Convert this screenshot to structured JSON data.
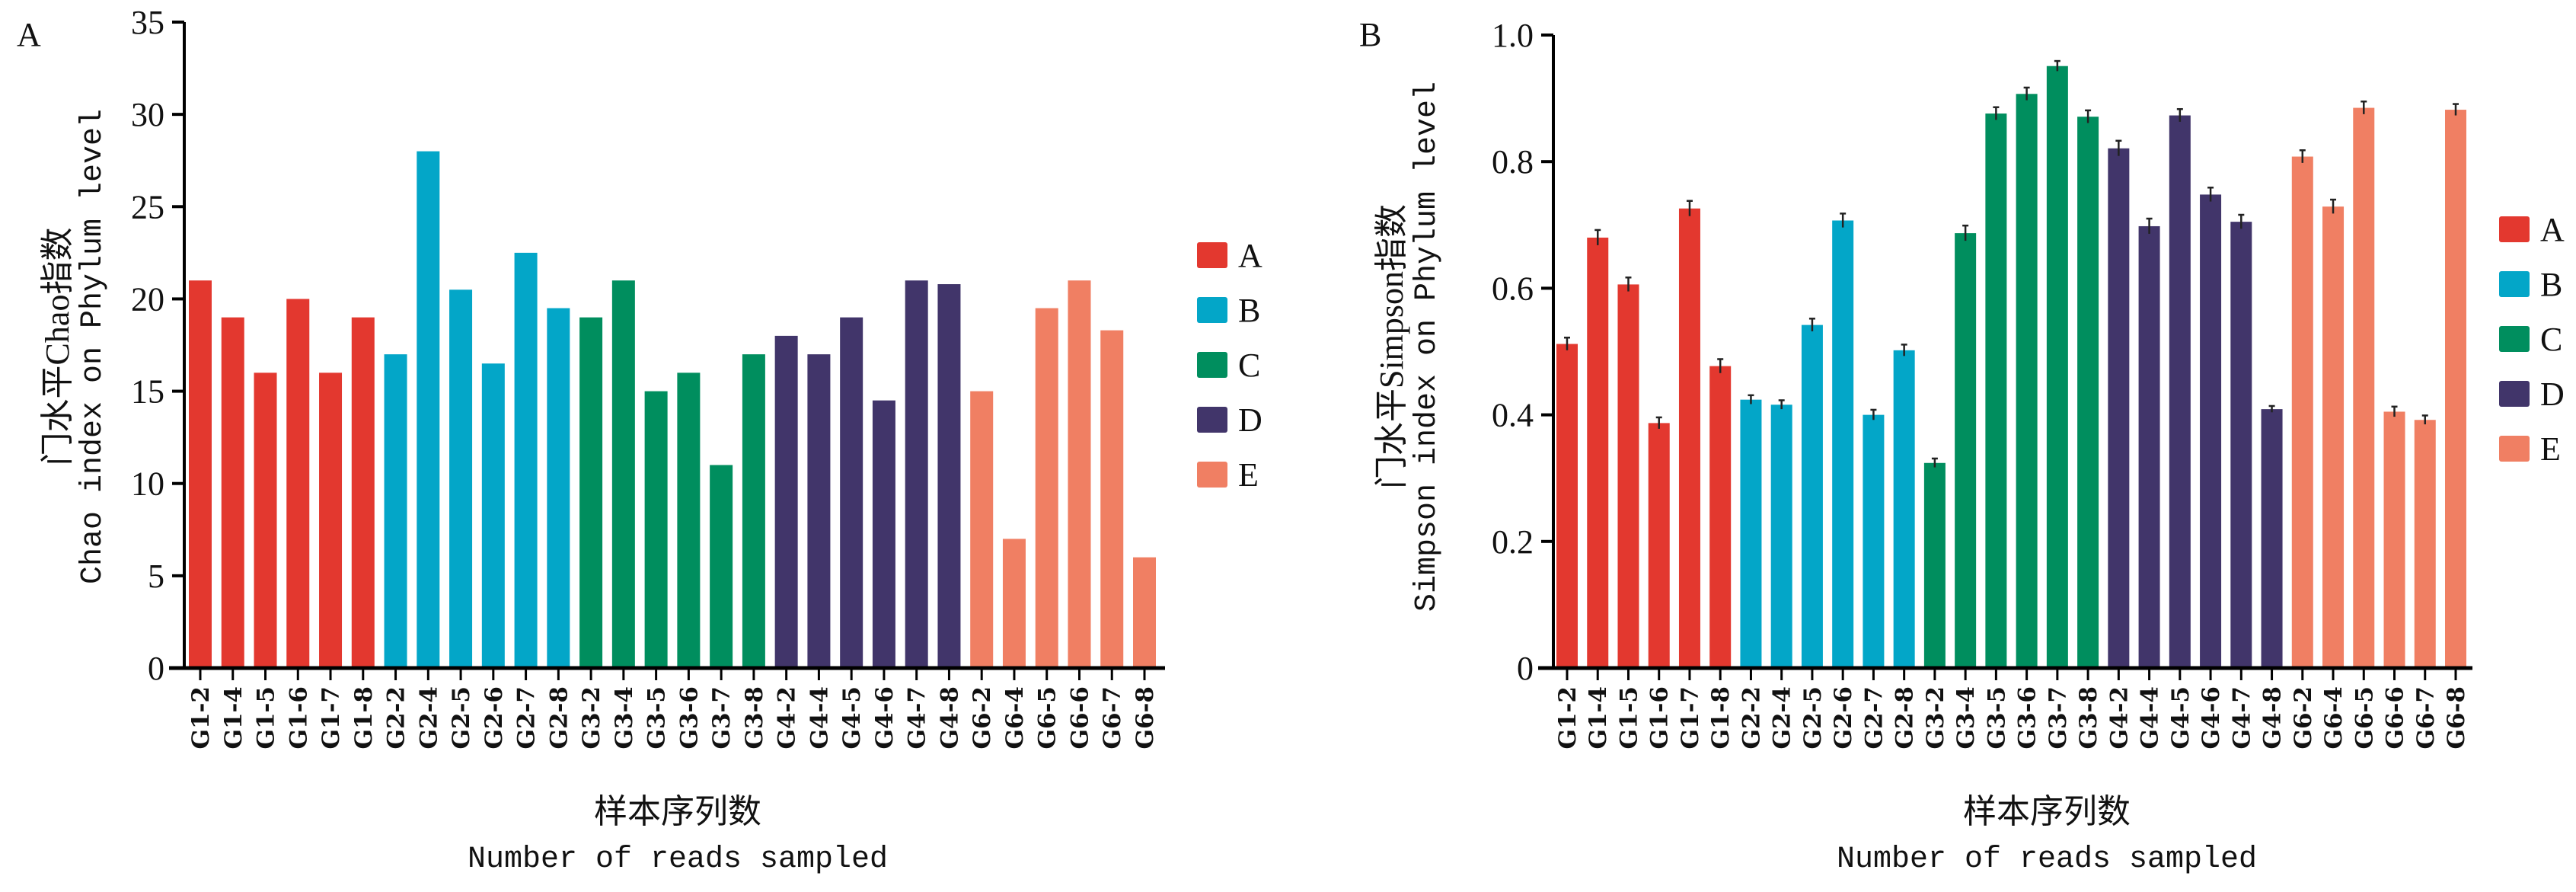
{
  "chart_data": [
    {
      "type": "bar",
      "panel_label": "A",
      "title": "",
      "ylabel_cn": "门水平Chao指数",
      "ylabel_en": "Chao index on Phylum level",
      "xlabel_cn": "样本序列数",
      "xlabel_en": "Number of reads sampled",
      "ylim": [
        0,
        35
      ],
      "yticks": [
        0,
        5,
        10,
        15,
        20,
        25,
        30,
        35
      ],
      "ytick_labels": [
        "0",
        "5",
        "10",
        "15",
        "20",
        "25",
        "30",
        "35"
      ],
      "grid": false,
      "error_bars": false,
      "legend_position": "right",
      "categories": [
        "G1-2",
        "G1-4",
        "G1-5",
        "G1-6",
        "G1-7",
        "G1-8",
        "G2-2",
        "G2-4",
        "G2-5",
        "G2-6",
        "G2-7",
        "G2-8",
        "G3-2",
        "G3-4",
        "G3-5",
        "G3-6",
        "G3-7",
        "G3-8",
        "G4-2",
        "G4-4",
        "G4-5",
        "G4-6",
        "G4-7",
        "G4-8",
        "G6-2",
        "G6-4",
        "G6-5",
        "G6-6",
        "G6-7",
        "G6-8"
      ],
      "groups": [
        "A",
        "A",
        "A",
        "A",
        "A",
        "A",
        "B",
        "B",
        "B",
        "B",
        "B",
        "B",
        "C",
        "C",
        "C",
        "C",
        "C",
        "C",
        "D",
        "D",
        "D",
        "D",
        "D",
        "D",
        "E",
        "E",
        "E",
        "E",
        "E",
        "E"
      ],
      "values": [
        21,
        19,
        16,
        20,
        16,
        19,
        17,
        28,
        20.5,
        16.5,
        22.5,
        19.5,
        19,
        21,
        15,
        16,
        11,
        17,
        18,
        17,
        19,
        14.5,
        21,
        20.8,
        15,
        7,
        19.5,
        21,
        18.3,
        6
      ]
    },
    {
      "type": "bar",
      "panel_label": "B",
      "title": "",
      "ylabel_cn": "门水平Simpson指数",
      "ylabel_en": "Simpson index on Phylum level",
      "xlabel_cn": "样本序列数",
      "xlabel_en": "Number of reads sampled",
      "ylim": [
        0,
        1.0
      ],
      "yticks": [
        0,
        0.2,
        0.4,
        0.6,
        0.8,
        1.0
      ],
      "ytick_labels": [
        "0",
        "0.2",
        "0.4",
        "0.6",
        "0.8",
        "1.0"
      ],
      "grid": false,
      "error_bars": true,
      "legend_position": "right",
      "categories": [
        "G1-2",
        "G1-4",
        "G1-5",
        "G1-6",
        "G1-7",
        "G1-8",
        "G2-2",
        "G2-4",
        "G2-5",
        "G2-6",
        "G2-7",
        "G2-8",
        "G3-2",
        "G3-4",
        "G3-5",
        "G3-6",
        "G3-7",
        "G3-8",
        "G4-2",
        "G4-4",
        "G4-5",
        "G4-6",
        "G4-7",
        "G4-8",
        "G6-2",
        "G6-4",
        "G6-5",
        "G6-6",
        "G6-7",
        "G6-8"
      ],
      "groups": [
        "A",
        "A",
        "A",
        "A",
        "A",
        "A",
        "B",
        "B",
        "B",
        "B",
        "B",
        "B",
        "C",
        "C",
        "C",
        "C",
        "C",
        "C",
        "D",
        "D",
        "D",
        "D",
        "D",
        "D",
        "E",
        "E",
        "E",
        "E",
        "E",
        "E"
      ],
      "values": [
        0.512,
        0.68,
        0.606,
        0.387,
        0.726,
        0.477,
        0.424,
        0.416,
        0.542,
        0.707,
        0.4,
        0.502,
        0.324,
        0.687,
        0.876,
        0.907,
        0.951,
        0.871,
        0.821,
        0.698,
        0.873,
        0.748,
        0.705,
        0.409,
        0.808,
        0.729,
        0.885,
        0.405,
        0.392,
        0.882
      ],
      "errors": [
        0.01,
        0.012,
        0.011,
        0.009,
        0.012,
        0.011,
        0.007,
        0.007,
        0.01,
        0.011,
        0.008,
        0.009,
        0.007,
        0.012,
        0.01,
        0.01,
        0.008,
        0.01,
        0.012,
        0.012,
        0.01,
        0.011,
        0.011,
        0.005,
        0.01,
        0.011,
        0.01,
        0.008,
        0.007,
        0.009
      ]
    }
  ],
  "legend": {
    "items": [
      {
        "label": "A",
        "color": "#E3382F"
      },
      {
        "label": "B",
        "color": "#03A6C8"
      },
      {
        "label": "C",
        "color": "#008E5E"
      },
      {
        "label": "D",
        "color": "#41356A"
      },
      {
        "label": "E",
        "color": "#F07F63"
      }
    ]
  }
}
